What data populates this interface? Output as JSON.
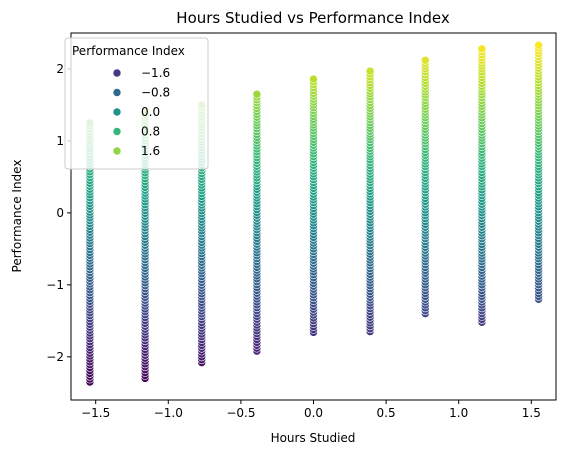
{
  "chart_data": {
    "type": "scatter",
    "title": "Hours Studied vs Performance Index",
    "xlabel": "Hours Studied",
    "ylabel": "Performance Index",
    "xlim": [
      -1.67,
      1.67
    ],
    "ylim": [
      -2.6,
      2.5
    ],
    "xticks": [
      -1.5,
      -1.0,
      -0.5,
      0.0,
      0.5,
      1.0,
      1.5
    ],
    "xtick_labels": [
      "−1.5",
      "−1.0",
      "−0.5",
      "0.0",
      "0.5",
      "1.0",
      "1.5"
    ],
    "yticks": [
      -2,
      -1,
      0,
      1,
      2
    ],
    "ytick_labels": [
      "−2",
      "−1",
      "0",
      "1",
      "2"
    ],
    "grid": false,
    "colormap": "viridis",
    "color_range": [
      -2.35,
      2.35
    ],
    "hours_groups": [
      {
        "x": -1.54,
        "y_min": -2.35,
        "y_max": 1.25
      },
      {
        "x": -1.16,
        "y_min": -2.3,
        "y_max": 1.4
      },
      {
        "x": -0.77,
        "y_min": -2.08,
        "y_max": 1.5
      },
      {
        "x": -0.39,
        "y_min": -1.92,
        "y_max": 1.65
      },
      {
        "x": 0.0,
        "y_min": -1.66,
        "y_max": 1.86
      },
      {
        "x": 0.39,
        "y_min": -1.65,
        "y_max": 1.97
      },
      {
        "x": 0.77,
        "y_min": -1.4,
        "y_max": 2.12
      },
      {
        "x": 1.16,
        "y_min": -1.52,
        "y_max": 2.28
      },
      {
        "x": 1.55,
        "y_min": -1.2,
        "y_max": 2.33
      }
    ],
    "legend": {
      "title": "Performance Index",
      "placement": "top-left",
      "entries": [
        {
          "label": "−1.6",
          "value": -1.6,
          "color": "#443983"
        },
        {
          "label": "−0.8",
          "value": -0.8,
          "color": "#31688e"
        },
        {
          "label": "0.0",
          "value": 0.0,
          "color": "#21918c"
        },
        {
          "label": "0.8",
          "value": 0.8,
          "color": "#35b779"
        },
        {
          "label": "1.6",
          "value": 1.6,
          "color": "#90d743"
        }
      ]
    }
  }
}
